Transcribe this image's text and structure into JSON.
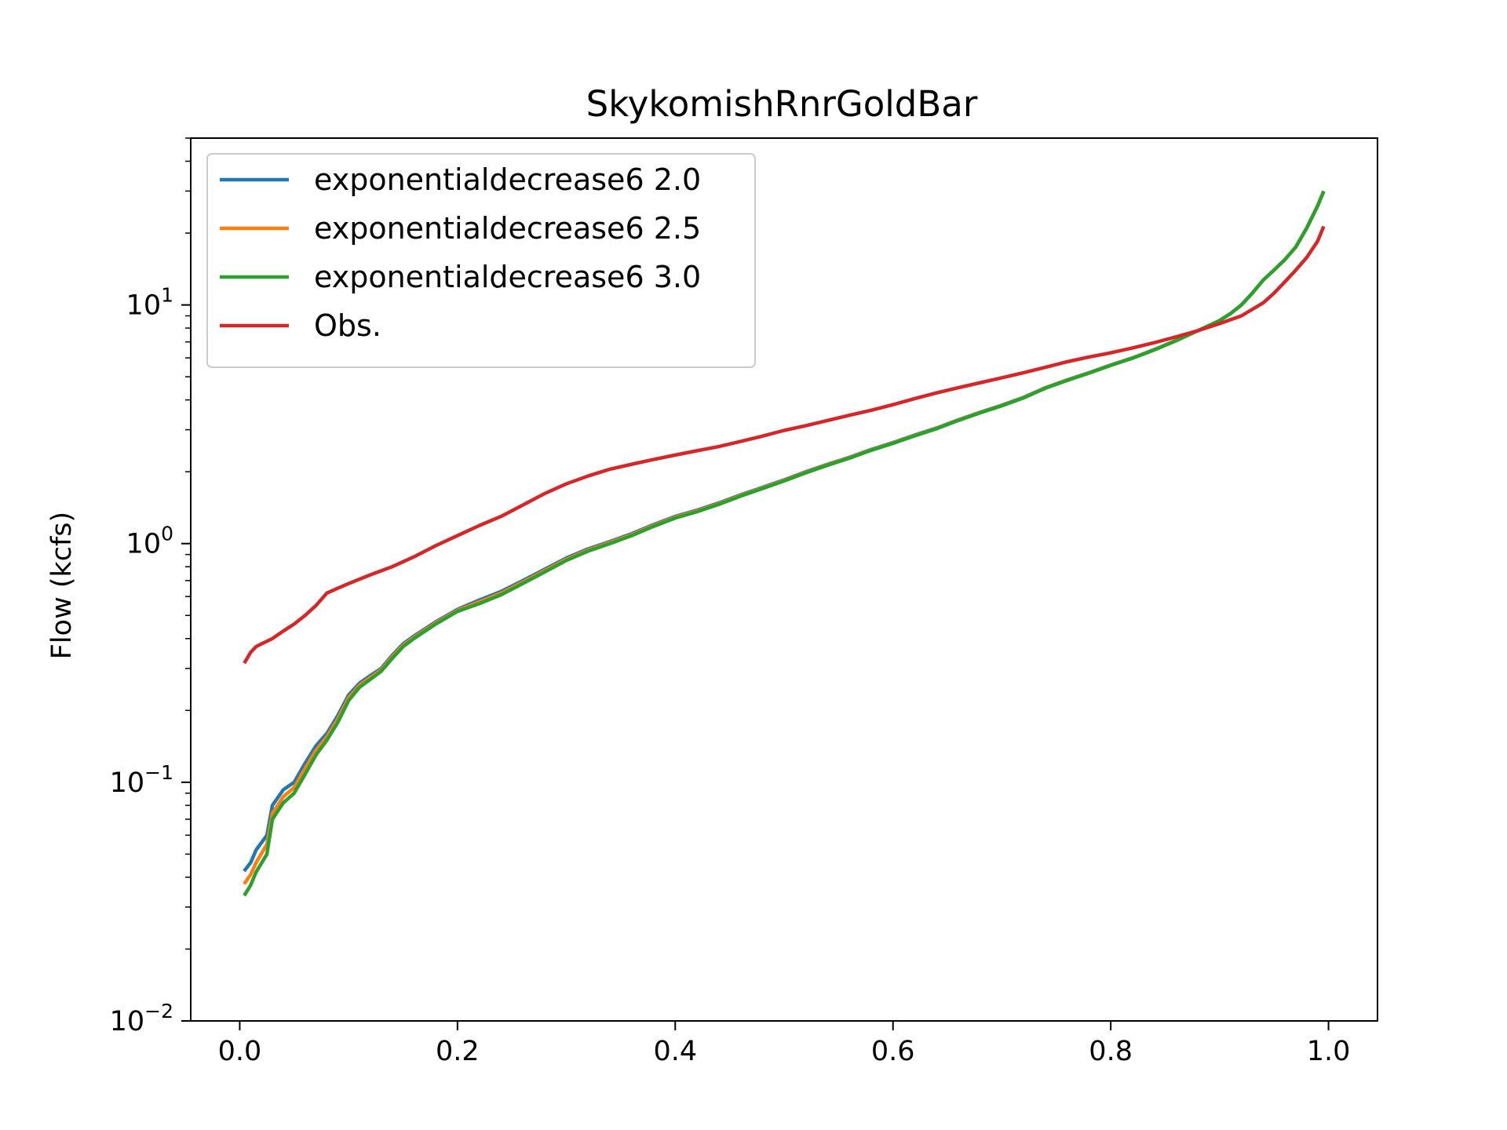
{
  "chart_data": {
    "type": "line",
    "title": "SkykomishRnrGoldBar",
    "xlabel": "",
    "ylabel": "Flow (kcfs)",
    "yscale": "log",
    "xlim": [
      -0.045,
      1.045
    ],
    "ylim": [
      0.01,
      50
    ],
    "x_ticks": [
      {
        "value": 0.0,
        "label": "0.0"
      },
      {
        "value": 0.2,
        "label": "0.2"
      },
      {
        "value": 0.4,
        "label": "0.4"
      },
      {
        "value": 0.6,
        "label": "0.6"
      },
      {
        "value": 0.8,
        "label": "0.8"
      },
      {
        "value": 1.0,
        "label": "1.0"
      }
    ],
    "y_ticks": [
      {
        "value": 0.01,
        "base": "10",
        "exp": "−2"
      },
      {
        "value": 0.1,
        "base": "10",
        "exp": "−1"
      },
      {
        "value": 1,
        "base": "10",
        "exp": "0"
      },
      {
        "value": 10,
        "base": "10",
        "exp": "1"
      }
    ],
    "grid": false,
    "legend_position": "top-left",
    "series": [
      {
        "name": "exponentialdecrease6 2.0",
        "color": "#1f77b4",
        "points": [
          [
            0.005,
            0.043
          ],
          [
            0.01,
            0.046
          ],
          [
            0.015,
            0.052
          ],
          [
            0.025,
            0.06
          ],
          [
            0.03,
            0.08
          ],
          [
            0.04,
            0.093
          ],
          [
            0.05,
            0.1
          ],
          [
            0.06,
            0.12
          ],
          [
            0.07,
            0.142
          ],
          [
            0.08,
            0.16
          ],
          [
            0.09,
            0.19
          ],
          [
            0.1,
            0.232
          ],
          [
            0.11,
            0.26
          ],
          [
            0.12,
            0.28
          ],
          [
            0.13,
            0.3
          ],
          [
            0.14,
            0.34
          ],
          [
            0.15,
            0.38
          ],
          [
            0.16,
            0.41
          ],
          [
            0.18,
            0.47
          ],
          [
            0.2,
            0.53
          ],
          [
            0.22,
            0.58
          ],
          [
            0.24,
            0.63
          ],
          [
            0.26,
            0.7
          ],
          [
            0.28,
            0.78
          ],
          [
            0.3,
            0.87
          ],
          [
            0.32,
            0.95
          ],
          [
            0.34,
            1.02
          ],
          [
            0.36,
            1.1
          ],
          [
            0.38,
            1.2
          ],
          [
            0.4,
            1.3
          ],
          [
            0.42,
            1.38
          ],
          [
            0.44,
            1.48
          ],
          [
            0.46,
            1.6
          ],
          [
            0.48,
            1.72
          ],
          [
            0.5,
            1.85
          ],
          [
            0.52,
            2.0
          ],
          [
            0.54,
            2.15
          ],
          [
            0.56,
            2.3
          ],
          [
            0.58,
            2.48
          ],
          [
            0.6,
            2.65
          ],
          [
            0.62,
            2.85
          ],
          [
            0.64,
            3.05
          ],
          [
            0.66,
            3.3
          ],
          [
            0.68,
            3.55
          ],
          [
            0.7,
            3.8
          ],
          [
            0.72,
            4.1
          ],
          [
            0.74,
            4.5
          ],
          [
            0.76,
            4.85
          ],
          [
            0.78,
            5.2
          ],
          [
            0.8,
            5.6
          ],
          [
            0.82,
            6.0
          ],
          [
            0.84,
            6.5
          ],
          [
            0.86,
            7.1
          ],
          [
            0.88,
            7.8
          ],
          [
            0.9,
            8.6
          ],
          [
            0.91,
            9.2
          ],
          [
            0.92,
            10.0
          ],
          [
            0.93,
            11.2
          ],
          [
            0.94,
            12.7
          ],
          [
            0.95,
            14.0
          ],
          [
            0.96,
            15.5
          ],
          [
            0.97,
            17.5
          ],
          [
            0.98,
            21.0
          ],
          [
            0.99,
            26.0
          ],
          [
            0.995,
            29.5
          ]
        ]
      },
      {
        "name": "exponentialdecrease6 2.5",
        "color": "#ff7f0e",
        "points": [
          [
            0.005,
            0.038
          ],
          [
            0.01,
            0.041
          ],
          [
            0.015,
            0.046
          ],
          [
            0.025,
            0.055
          ],
          [
            0.03,
            0.074
          ],
          [
            0.04,
            0.087
          ],
          [
            0.05,
            0.095
          ],
          [
            0.06,
            0.114
          ],
          [
            0.07,
            0.136
          ],
          [
            0.08,
            0.155
          ],
          [
            0.09,
            0.184
          ],
          [
            0.1,
            0.226
          ],
          [
            0.11,
            0.255
          ],
          [
            0.12,
            0.275
          ],
          [
            0.13,
            0.296
          ],
          [
            0.14,
            0.335
          ],
          [
            0.15,
            0.375
          ],
          [
            0.16,
            0.405
          ],
          [
            0.18,
            0.465
          ],
          [
            0.2,
            0.525
          ],
          [
            0.22,
            0.57
          ],
          [
            0.24,
            0.62
          ],
          [
            0.26,
            0.69
          ],
          [
            0.28,
            0.77
          ],
          [
            0.3,
            0.86
          ],
          [
            0.32,
            0.94
          ],
          [
            0.34,
            1.01
          ],
          [
            0.36,
            1.09
          ],
          [
            0.38,
            1.19
          ],
          [
            0.4,
            1.29
          ],
          [
            0.42,
            1.37
          ],
          [
            0.44,
            1.47
          ],
          [
            0.46,
            1.59
          ],
          [
            0.48,
            1.71
          ],
          [
            0.5,
            1.84
          ],
          [
            0.52,
            1.99
          ],
          [
            0.54,
            2.14
          ],
          [
            0.56,
            2.29
          ],
          [
            0.58,
            2.47
          ],
          [
            0.6,
            2.64
          ],
          [
            0.62,
            2.84
          ],
          [
            0.64,
            3.04
          ],
          [
            0.66,
            3.29
          ],
          [
            0.68,
            3.54
          ],
          [
            0.7,
            3.79
          ],
          [
            0.72,
            4.09
          ],
          [
            0.74,
            4.49
          ],
          [
            0.76,
            4.84
          ],
          [
            0.78,
            5.19
          ],
          [
            0.8,
            5.59
          ],
          [
            0.82,
            5.99
          ],
          [
            0.84,
            6.49
          ],
          [
            0.86,
            7.09
          ],
          [
            0.88,
            7.8
          ],
          [
            0.9,
            8.6
          ],
          [
            0.91,
            9.2
          ],
          [
            0.92,
            10.0
          ],
          [
            0.93,
            11.2
          ],
          [
            0.94,
            12.7
          ],
          [
            0.95,
            14.0
          ],
          [
            0.96,
            15.5
          ],
          [
            0.97,
            17.5
          ],
          [
            0.98,
            21.0
          ],
          [
            0.99,
            26.0
          ],
          [
            0.995,
            29.5
          ]
        ]
      },
      {
        "name": "exponentialdecrease6 3.0",
        "color": "#2ca02c",
        "points": [
          [
            0.005,
            0.034
          ],
          [
            0.01,
            0.037
          ],
          [
            0.015,
            0.042
          ],
          [
            0.025,
            0.05
          ],
          [
            0.03,
            0.07
          ],
          [
            0.04,
            0.082
          ],
          [
            0.05,
            0.09
          ],
          [
            0.06,
            0.108
          ],
          [
            0.07,
            0.13
          ],
          [
            0.08,
            0.15
          ],
          [
            0.09,
            0.178
          ],
          [
            0.1,
            0.22
          ],
          [
            0.11,
            0.25
          ],
          [
            0.12,
            0.27
          ],
          [
            0.13,
            0.292
          ],
          [
            0.14,
            0.33
          ],
          [
            0.15,
            0.37
          ],
          [
            0.16,
            0.4
          ],
          [
            0.18,
            0.46
          ],
          [
            0.2,
            0.52
          ],
          [
            0.22,
            0.56
          ],
          [
            0.24,
            0.61
          ],
          [
            0.26,
            0.68
          ],
          [
            0.28,
            0.76
          ],
          [
            0.3,
            0.85
          ],
          [
            0.32,
            0.93
          ],
          [
            0.34,
            1.0
          ],
          [
            0.36,
            1.08
          ],
          [
            0.38,
            1.18
          ],
          [
            0.4,
            1.28
          ],
          [
            0.42,
            1.36
          ],
          [
            0.44,
            1.46
          ],
          [
            0.46,
            1.58
          ],
          [
            0.48,
            1.7
          ],
          [
            0.5,
            1.83
          ],
          [
            0.52,
            1.98
          ],
          [
            0.54,
            2.13
          ],
          [
            0.56,
            2.28
          ],
          [
            0.58,
            2.46
          ],
          [
            0.6,
            2.63
          ],
          [
            0.62,
            2.83
          ],
          [
            0.64,
            3.03
          ],
          [
            0.66,
            3.28
          ],
          [
            0.68,
            3.53
          ],
          [
            0.7,
            3.78
          ],
          [
            0.72,
            4.08
          ],
          [
            0.74,
            4.48
          ],
          [
            0.76,
            4.83
          ],
          [
            0.78,
            5.18
          ],
          [
            0.8,
            5.58
          ],
          [
            0.82,
            5.98
          ],
          [
            0.84,
            6.48
          ],
          [
            0.86,
            7.08
          ],
          [
            0.88,
            7.8
          ],
          [
            0.9,
            8.6
          ],
          [
            0.91,
            9.2
          ],
          [
            0.92,
            10.0
          ],
          [
            0.93,
            11.2
          ],
          [
            0.94,
            12.7
          ],
          [
            0.95,
            14.0
          ],
          [
            0.96,
            15.5
          ],
          [
            0.97,
            17.5
          ],
          [
            0.98,
            21.0
          ],
          [
            0.99,
            26.0
          ],
          [
            0.995,
            29.5
          ]
        ]
      },
      {
        "name": "Obs.",
        "color": "#d62728",
        "points": [
          [
            0.005,
            0.32
          ],
          [
            0.01,
            0.35
          ],
          [
            0.015,
            0.37
          ],
          [
            0.02,
            0.38
          ],
          [
            0.03,
            0.4
          ],
          [
            0.04,
            0.43
          ],
          [
            0.05,
            0.46
          ],
          [
            0.06,
            0.5
          ],
          [
            0.07,
            0.55
          ],
          [
            0.08,
            0.62
          ],
          [
            0.09,
            0.65
          ],
          [
            0.1,
            0.68
          ],
          [
            0.12,
            0.74
          ],
          [
            0.14,
            0.8
          ],
          [
            0.16,
            0.88
          ],
          [
            0.18,
            0.98
          ],
          [
            0.2,
            1.08
          ],
          [
            0.22,
            1.19
          ],
          [
            0.24,
            1.3
          ],
          [
            0.26,
            1.45
          ],
          [
            0.28,
            1.62
          ],
          [
            0.3,
            1.78
          ],
          [
            0.32,
            1.92
          ],
          [
            0.34,
            2.05
          ],
          [
            0.36,
            2.15
          ],
          [
            0.38,
            2.25
          ],
          [
            0.4,
            2.35
          ],
          [
            0.42,
            2.45
          ],
          [
            0.44,
            2.55
          ],
          [
            0.46,
            2.68
          ],
          [
            0.48,
            2.82
          ],
          [
            0.5,
            2.98
          ],
          [
            0.52,
            3.12
          ],
          [
            0.54,
            3.28
          ],
          [
            0.56,
            3.45
          ],
          [
            0.58,
            3.62
          ],
          [
            0.6,
            3.82
          ],
          [
            0.62,
            4.05
          ],
          [
            0.64,
            4.28
          ],
          [
            0.66,
            4.5
          ],
          [
            0.68,
            4.72
          ],
          [
            0.7,
            4.95
          ],
          [
            0.72,
            5.2
          ],
          [
            0.74,
            5.48
          ],
          [
            0.76,
            5.78
          ],
          [
            0.78,
            6.05
          ],
          [
            0.8,
            6.3
          ],
          [
            0.82,
            6.6
          ],
          [
            0.84,
            6.95
          ],
          [
            0.86,
            7.35
          ],
          [
            0.88,
            7.8
          ],
          [
            0.9,
            8.35
          ],
          [
            0.92,
            9.0
          ],
          [
            0.94,
            10.2
          ],
          [
            0.95,
            11.2
          ],
          [
            0.96,
            12.5
          ],
          [
            0.97,
            14.0
          ],
          [
            0.98,
            15.8
          ],
          [
            0.99,
            18.5
          ],
          [
            0.995,
            21.0
          ]
        ]
      }
    ]
  }
}
